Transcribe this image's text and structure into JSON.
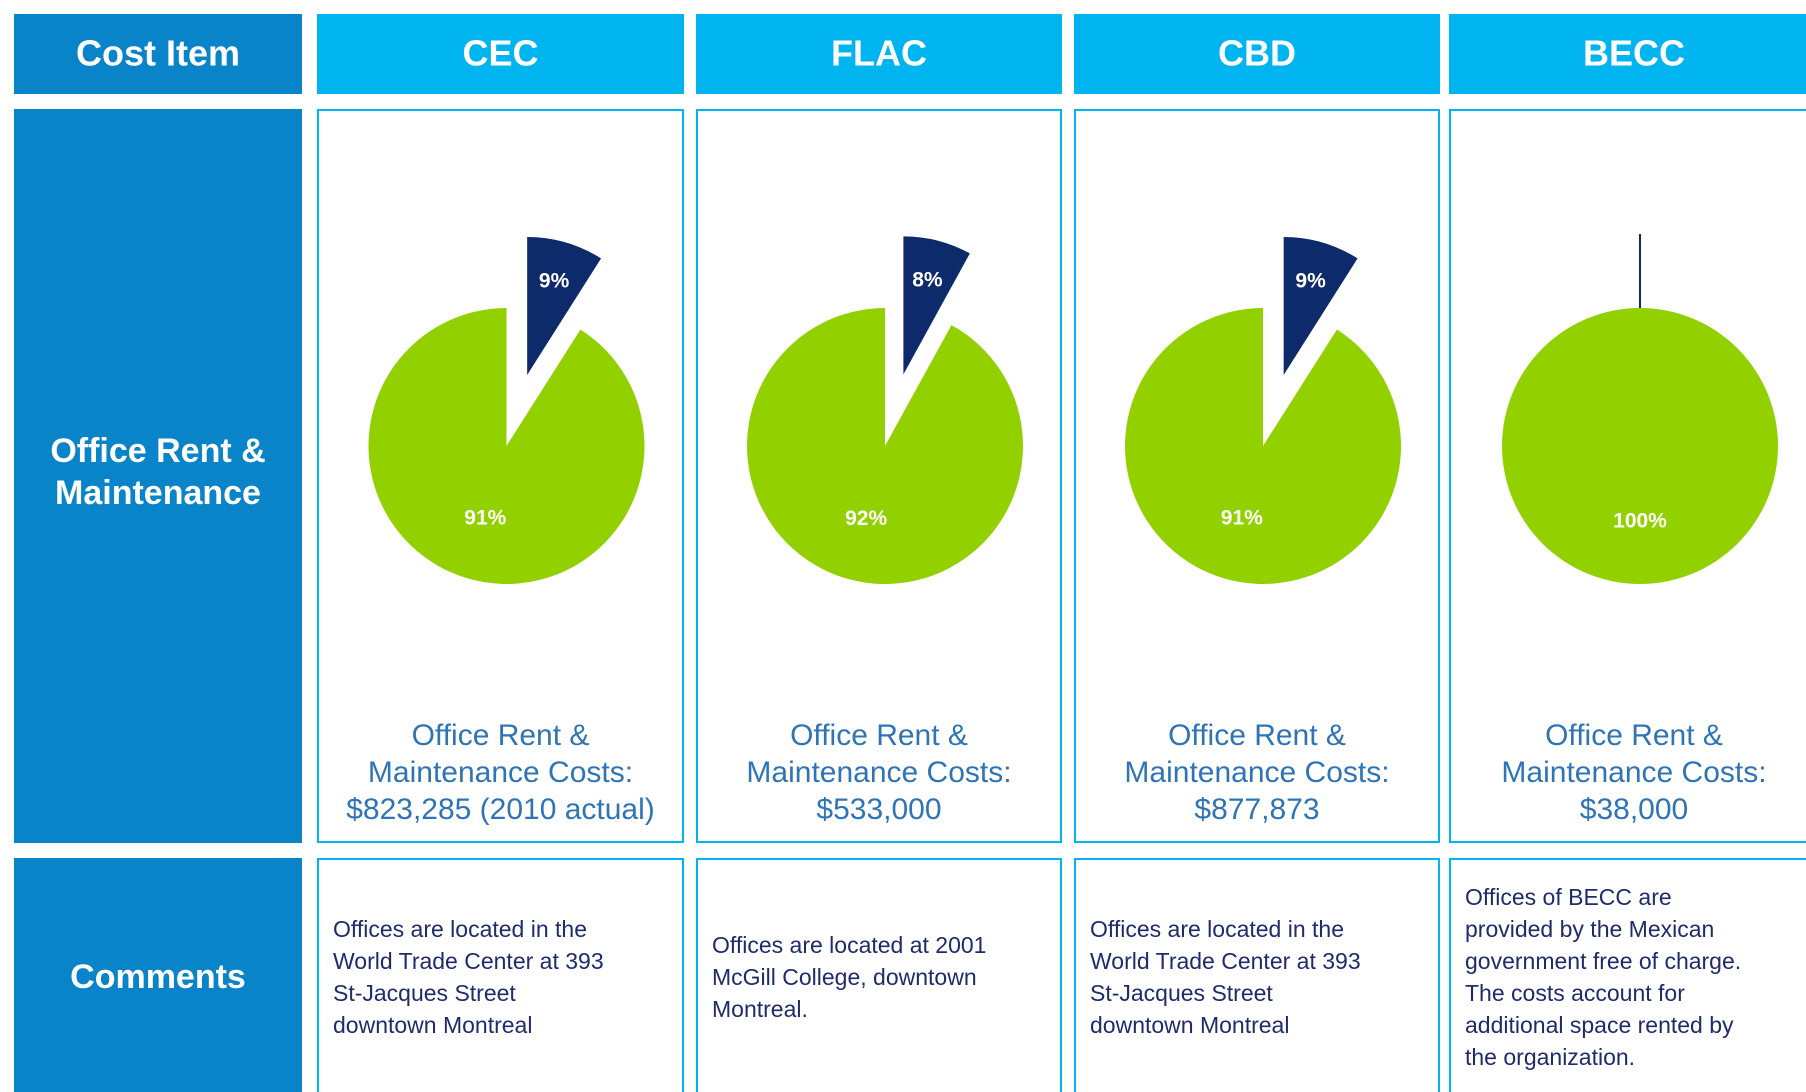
{
  "header": [
    "Cost Item",
    "CEC",
    "FLAC",
    "CBD",
    "BECC"
  ],
  "rows": [
    {
      "label": [
        "Office Rent &",
        "Maintenance"
      ],
      "cells": [
        [
          "Office Rent &",
          "Maintenance Costs:",
          "$823,285 (2010 actual)"
        ],
        [
          "Office Rent &",
          "Maintenance Costs:",
          "$533,000"
        ],
        [
          "Office Rent &",
          "Maintenance Costs:",
          "$877,873"
        ],
        [
          "Office Rent &",
          "Maintenance Costs:",
          "$38,000"
        ]
      ]
    },
    {
      "label": [
        "Comments"
      ],
      "cells": [
        [
          "Offices are located in the",
          "World Trade Center at 393",
          "St-Jacques Street",
          "downtown Montreal"
        ],
        [
          "Offices are located at 2001",
          "McGill College, downtown",
          "Montreal."
        ],
        [
          "Offices are located in the",
          "World Trade Center at 393",
          "St-Jacques Street",
          "downtown Montreal"
        ],
        [
          "Offices of BECC are",
          "provided by the Mexican",
          "government free of charge.",
          "The costs account for",
          "additional space rented by",
          "the organization."
        ]
      ]
    }
  ],
  "chart_data": [
    {
      "type": "pie",
      "values": [
        9,
        91
      ],
      "value_labels": [
        "9%",
        "91%"
      ],
      "colors": [
        "#0d2a6b",
        "#92d000"
      ],
      "explode": [
        true,
        false
      ]
    },
    {
      "type": "pie",
      "values": [
        8,
        92
      ],
      "value_labels": [
        "8%",
        "92%"
      ],
      "colors": [
        "#0d2a6b",
        "#92d000"
      ],
      "explode": [
        true,
        false
      ]
    },
    {
      "type": "pie",
      "values": [
        9,
        91
      ],
      "value_labels": [
        "9%",
        "91%"
      ],
      "colors": [
        "#0d2a6b",
        "#92d000"
      ],
      "explode": [
        true,
        false
      ]
    },
    {
      "type": "pie",
      "values": [
        0,
        100
      ],
      "value_labels": [
        null,
        "100%"
      ],
      "colors": [
        "#0d2a6b",
        "#92d000"
      ],
      "explode": [
        true,
        false
      ]
    }
  ]
}
